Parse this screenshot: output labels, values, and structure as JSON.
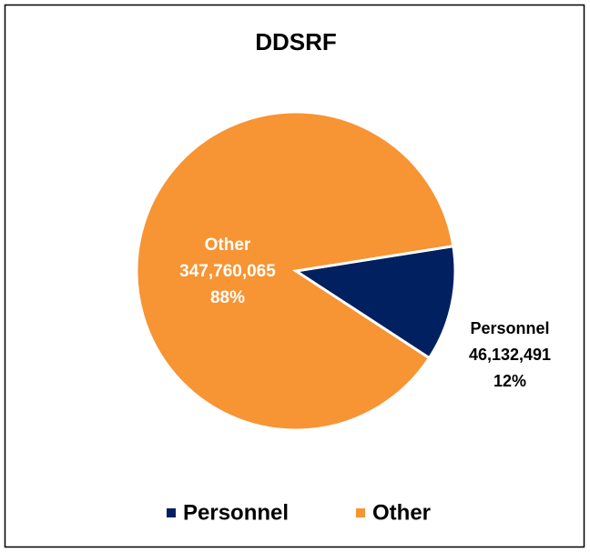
{
  "chart_data": {
    "type": "pie",
    "title": "DDSRF",
    "categories": [
      "Personnel",
      "Other"
    ],
    "values": [
      46132491,
      347760065
    ],
    "value_labels": [
      "46,132,491",
      "347,760,065"
    ],
    "percent_labels": [
      "12%",
      "88%"
    ],
    "colors": [
      "#002060",
      "#f79433"
    ],
    "label_colors": [
      "#000000",
      "#ffffff"
    ],
    "legend": "bottom"
  }
}
